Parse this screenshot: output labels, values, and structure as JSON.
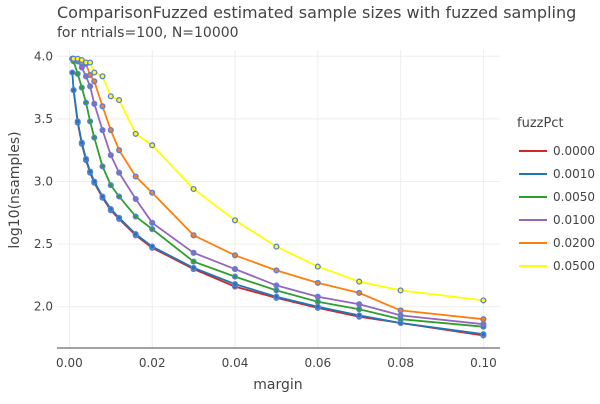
{
  "chart_data": {
    "type": "line",
    "title": "ComparisonFuzzed estimated sample sizes with fuzzed sampling",
    "subtitle": "for ntrials=100, N=10000",
    "xlabel": "margin",
    "ylabel": "log10(nsamples)",
    "xlim": [
      -0.003,
      0.104
    ],
    "ylim": [
      1.67,
      4.05
    ],
    "x_ticks": [
      0,
      0.02,
      0.04,
      0.06,
      0.08,
      0.1
    ],
    "x_tick_labels": [
      "0.00",
      "0.02",
      "0.04",
      "0.06",
      "0.08",
      "0.10"
    ],
    "y_ticks": [
      2.0,
      2.5,
      3.0,
      3.5,
      4.0
    ],
    "y_tick_labels": [
      "2.0",
      "2.5",
      "3.0",
      "3.5",
      "4.0"
    ],
    "grid": true,
    "marker_color": "#5b7fd6",
    "legend": {
      "title": "fuzzPct",
      "placement": "right"
    },
    "series": [
      {
        "name": "0.0000",
        "color": "#d62728",
        "points": [
          [
            0.001,
            3.73
          ],
          [
            0.002,
            3.47
          ],
          [
            0.003,
            3.3
          ],
          [
            0.004,
            3.17
          ],
          [
            0.005,
            3.07
          ],
          [
            0.006,
            2.99
          ],
          [
            0.008,
            2.87
          ],
          [
            0.01,
            2.77
          ],
          [
            0.012,
            2.7
          ],
          [
            0.016,
            2.57
          ],
          [
            0.02,
            2.47
          ],
          [
            0.03,
            2.3
          ],
          [
            0.04,
            2.16
          ],
          [
            0.05,
            2.07
          ],
          [
            0.06,
            1.99
          ],
          [
            0.07,
            1.92
          ],
          [
            0.08,
            1.87
          ],
          [
            0.1,
            1.77
          ]
        ]
      },
      {
        "name": "0.0010",
        "color": "#1f77b4",
        "points": [
          [
            0.0007,
            3.87
          ],
          [
            0.001,
            3.73
          ],
          [
            0.002,
            3.48
          ],
          [
            0.003,
            3.31
          ],
          [
            0.004,
            3.18
          ],
          [
            0.005,
            3.08
          ],
          [
            0.006,
            3.0
          ],
          [
            0.008,
            2.88
          ],
          [
            0.01,
            2.78
          ],
          [
            0.012,
            2.71
          ],
          [
            0.016,
            2.58
          ],
          [
            0.02,
            2.48
          ],
          [
            0.03,
            2.31
          ],
          [
            0.04,
            2.18
          ],
          [
            0.05,
            2.08
          ],
          [
            0.06,
            2.0
          ],
          [
            0.07,
            1.93
          ],
          [
            0.08,
            1.87
          ],
          [
            0.1,
            1.78
          ]
        ]
      },
      {
        "name": "0.0050",
        "color": "#2ca02c",
        "points": [
          [
            0.0007,
            3.98
          ],
          [
            0.001,
            3.96
          ],
          [
            0.002,
            3.86
          ],
          [
            0.003,
            3.75
          ],
          [
            0.004,
            3.63
          ],
          [
            0.005,
            3.48
          ],
          [
            0.006,
            3.35
          ],
          [
            0.008,
            3.12
          ],
          [
            0.01,
            2.97
          ],
          [
            0.012,
            2.88
          ],
          [
            0.016,
            2.72
          ],
          [
            0.02,
            2.62
          ],
          [
            0.03,
            2.36
          ],
          [
            0.04,
            2.24
          ],
          [
            0.05,
            2.13
          ],
          [
            0.06,
            2.04
          ],
          [
            0.07,
            1.98
          ],
          [
            0.08,
            1.9
          ],
          [
            0.1,
            1.84
          ]
        ]
      },
      {
        "name": "0.0100",
        "color": "#9467bd",
        "points": [
          [
            0.0007,
            3.98
          ],
          [
            0.001,
            3.98
          ],
          [
            0.002,
            3.96
          ],
          [
            0.003,
            3.91
          ],
          [
            0.004,
            3.84
          ],
          [
            0.005,
            3.76
          ],
          [
            0.006,
            3.62
          ],
          [
            0.008,
            3.41
          ],
          [
            0.01,
            3.21
          ],
          [
            0.012,
            3.07
          ],
          [
            0.016,
            2.86
          ],
          [
            0.02,
            2.67
          ],
          [
            0.03,
            2.43
          ],
          [
            0.04,
            2.3
          ],
          [
            0.05,
            2.17
          ],
          [
            0.06,
            2.08
          ],
          [
            0.07,
            2.02
          ],
          [
            0.08,
            1.93
          ],
          [
            0.1,
            1.86
          ]
        ]
      },
      {
        "name": "0.0200",
        "color": "#ff7f0e",
        "points": [
          [
            0.0007,
            3.98
          ],
          [
            0.001,
            3.98
          ],
          [
            0.002,
            3.97
          ],
          [
            0.003,
            3.95
          ],
          [
            0.004,
            3.94
          ],
          [
            0.005,
            3.85
          ],
          [
            0.006,
            3.8
          ],
          [
            0.008,
            3.6
          ],
          [
            0.01,
            3.41
          ],
          [
            0.012,
            3.25
          ],
          [
            0.016,
            3.04
          ],
          [
            0.02,
            2.91
          ],
          [
            0.03,
            2.57
          ],
          [
            0.04,
            2.41
          ],
          [
            0.05,
            2.29
          ],
          [
            0.06,
            2.19
          ],
          [
            0.07,
            2.11
          ],
          [
            0.08,
            1.97
          ],
          [
            0.1,
            1.9
          ]
        ]
      },
      {
        "name": "0.0500",
        "color": "#ffff00",
        "points": [
          [
            0.0007,
            3.98
          ],
          [
            0.001,
            3.98
          ],
          [
            0.002,
            3.98
          ],
          [
            0.003,
            3.97
          ],
          [
            0.004,
            3.95
          ],
          [
            0.005,
            3.95
          ],
          [
            0.006,
            3.87
          ],
          [
            0.008,
            3.84
          ],
          [
            0.01,
            3.68
          ],
          [
            0.012,
            3.65
          ],
          [
            0.016,
            3.38
          ],
          [
            0.02,
            3.29
          ],
          [
            0.03,
            2.94
          ],
          [
            0.04,
            2.69
          ],
          [
            0.05,
            2.48
          ],
          [
            0.06,
            2.32
          ],
          [
            0.07,
            2.2
          ],
          [
            0.08,
            2.13
          ],
          [
            0.1,
            2.05
          ]
        ]
      }
    ]
  }
}
